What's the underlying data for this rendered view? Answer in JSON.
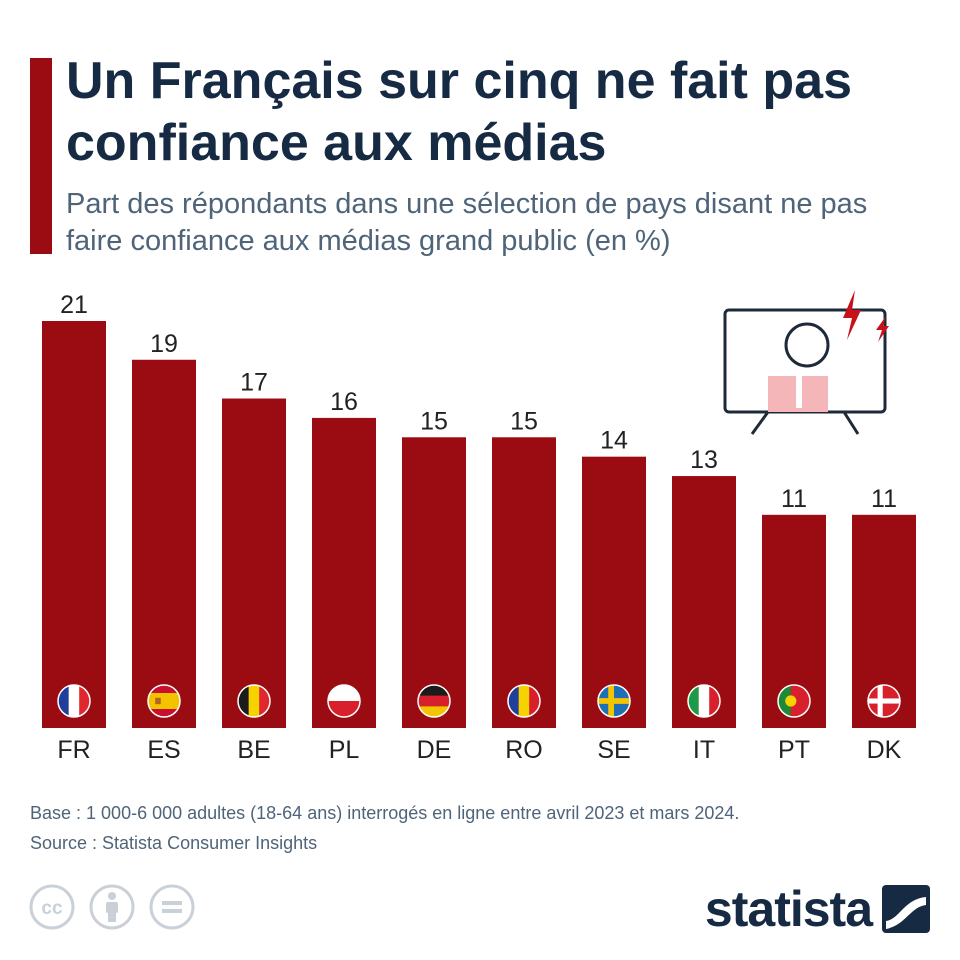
{
  "header": {
    "title": "Un Français sur cinq ne fait pas confiance aux médias",
    "subtitle": "Part des répondants dans une sélection de pays disant ne pas faire confiance aux médias grand public (en %)"
  },
  "chart_data": {
    "type": "bar",
    "categories": [
      "FR",
      "ES",
      "BE",
      "PL",
      "DE",
      "RO",
      "SE",
      "IT",
      "PT",
      "DK"
    ],
    "values": [
      21,
      19,
      17,
      16,
      15,
      15,
      14,
      13,
      11,
      11
    ],
    "flags": [
      "france-flag-icon",
      "spain-flag-icon",
      "belgium-flag-icon",
      "poland-flag-icon",
      "germany-flag-icon",
      "romania-flag-icon",
      "sweden-flag-icon",
      "italy-flag-icon",
      "portugal-flag-icon",
      "denmark-flag-icon"
    ],
    "title": "",
    "xlabel": "",
    "ylabel": "",
    "ylim": [
      0,
      21
    ],
    "grid": false,
    "color": "#9a0b12"
  },
  "footer": {
    "base_note": "Base : 1 000-6 000 adultes (18-64 ans) interrogés en ligne entre avril 2023 et mars 2024.",
    "source": "Source : Statista Consumer Insights",
    "license_icons": [
      "cc-icon",
      "attribution-icon",
      "no-derivatives-icon"
    ],
    "logo_text": "statista"
  },
  "colors": {
    "accent": "#9a0b12",
    "title": "#162a43",
    "subtitle": "#4f6479",
    "icon_outline": "#1e2a3a",
    "icon_shirt": "#f4b6b8"
  }
}
